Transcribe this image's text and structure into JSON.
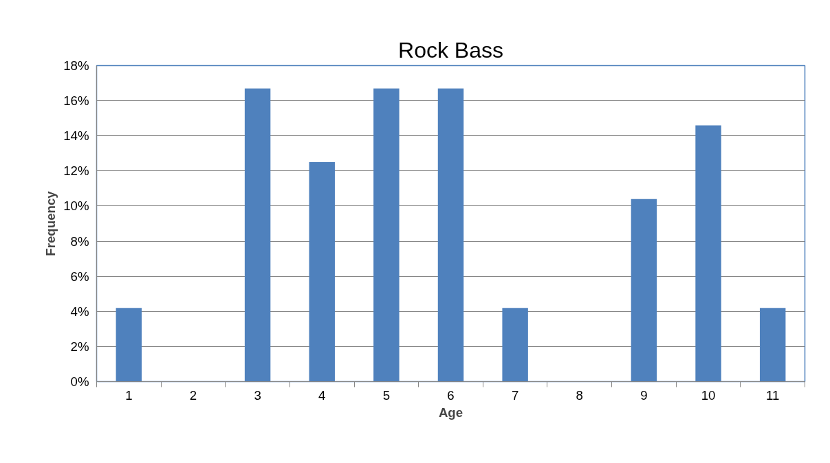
{
  "chart_data": {
    "type": "bar",
    "title": "Rock Bass",
    "xlabel": "Age",
    "ylabel": "Frequency",
    "categories": [
      "1",
      "2",
      "3",
      "4",
      "5",
      "6",
      "7",
      "8",
      "9",
      "10",
      "11"
    ],
    "values": [
      4.2,
      0,
      16.7,
      12.5,
      16.7,
      16.7,
      4.2,
      0,
      10.4,
      14.6,
      4.2
    ],
    "color": "#4f81bd",
    "ylim": [
      0,
      18
    ],
    "yticks": [
      {
        "value": 0,
        "label": "0%"
      },
      {
        "value": 2,
        "label": "2%"
      },
      {
        "value": 4,
        "label": "4%"
      },
      {
        "value": 6,
        "label": "6%"
      },
      {
        "value": 8,
        "label": "8%"
      },
      {
        "value": 10,
        "label": "10%"
      },
      {
        "value": 12,
        "label": "12%"
      },
      {
        "value": 14,
        "label": "14%"
      },
      {
        "value": 16,
        "label": "16%"
      },
      {
        "value": 18,
        "label": "18%"
      }
    ],
    "grid": "y"
  }
}
